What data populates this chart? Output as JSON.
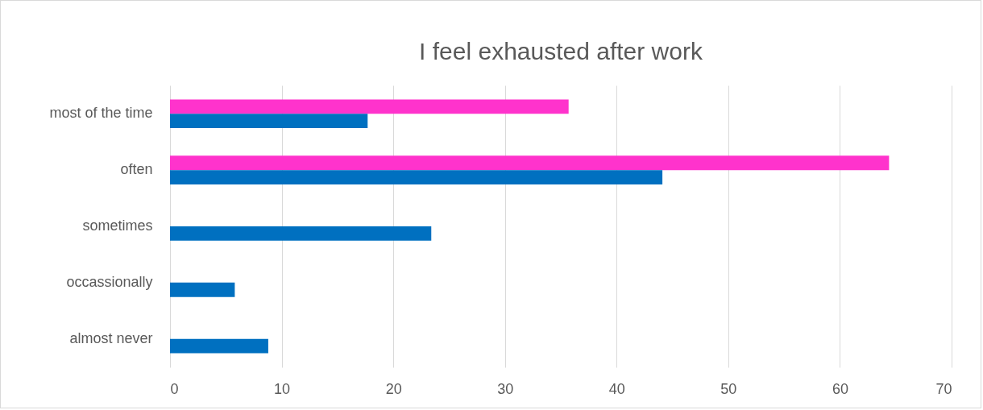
{
  "chart_data": {
    "type": "bar",
    "orientation": "horizontal",
    "title": "I feel exhausted after work",
    "categories": [
      "most of the time",
      "often",
      "sometimes",
      "occassionally",
      "almost never"
    ],
    "series": [
      {
        "color": "#ff33cc",
        "values": [
          35.7,
          64.4,
          null,
          null,
          null
        ]
      },
      {
        "color": "#0070c0",
        "values": [
          17.7,
          44.1,
          23.4,
          5.8,
          8.8
        ]
      }
    ],
    "xlim": [
      0,
      70
    ],
    "xticks": [
      0,
      10,
      20,
      30,
      40,
      50,
      60,
      70
    ],
    "grid": "x"
  }
}
